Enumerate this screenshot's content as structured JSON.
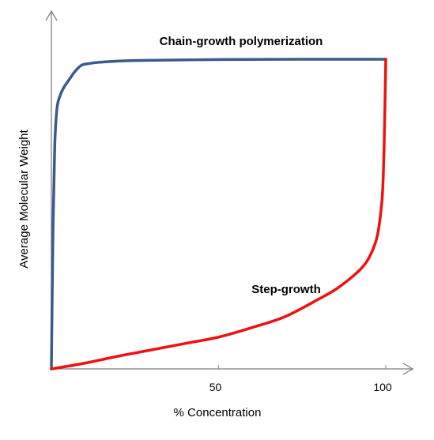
{
  "chart_data": {
    "type": "line",
    "title": "",
    "xlabel": "% Concentration",
    "ylabel": "Average Molecular Weight",
    "xlim": [
      0,
      107
    ],
    "ylim": [
      0,
      1.11
    ],
    "xticks": [
      50,
      100
    ],
    "xtick_labels": [
      "50",
      "100"
    ],
    "grid": false,
    "legend": "none",
    "series": [
      {
        "name": "Chain-growth polymerization",
        "color": "#3A5A8C",
        "x": [
          0,
          0.5,
          1,
          1.5,
          2,
          3,
          4,
          5,
          7,
          9,
          11,
          15,
          25,
          50,
          75,
          100
        ],
        "y": [
          0,
          0.45,
          0.7,
          0.8,
          0.84,
          0.87,
          0.89,
          0.905,
          0.935,
          0.955,
          0.96,
          0.965,
          0.97,
          0.973,
          0.974,
          0.974
        ]
      },
      {
        "name": "Step-growth",
        "color": "#EE1111",
        "x": [
          0,
          10,
          20,
          30,
          40,
          50,
          60,
          70,
          80,
          85,
          90,
          93,
          95,
          97,
          98,
          99,
          99.5,
          100
        ],
        "y": [
          0,
          0.018,
          0.04,
          0.06,
          0.08,
          0.1,
          0.13,
          0.165,
          0.22,
          0.25,
          0.29,
          0.32,
          0.35,
          0.4,
          0.45,
          0.55,
          0.7,
          0.974
        ]
      }
    ]
  }
}
